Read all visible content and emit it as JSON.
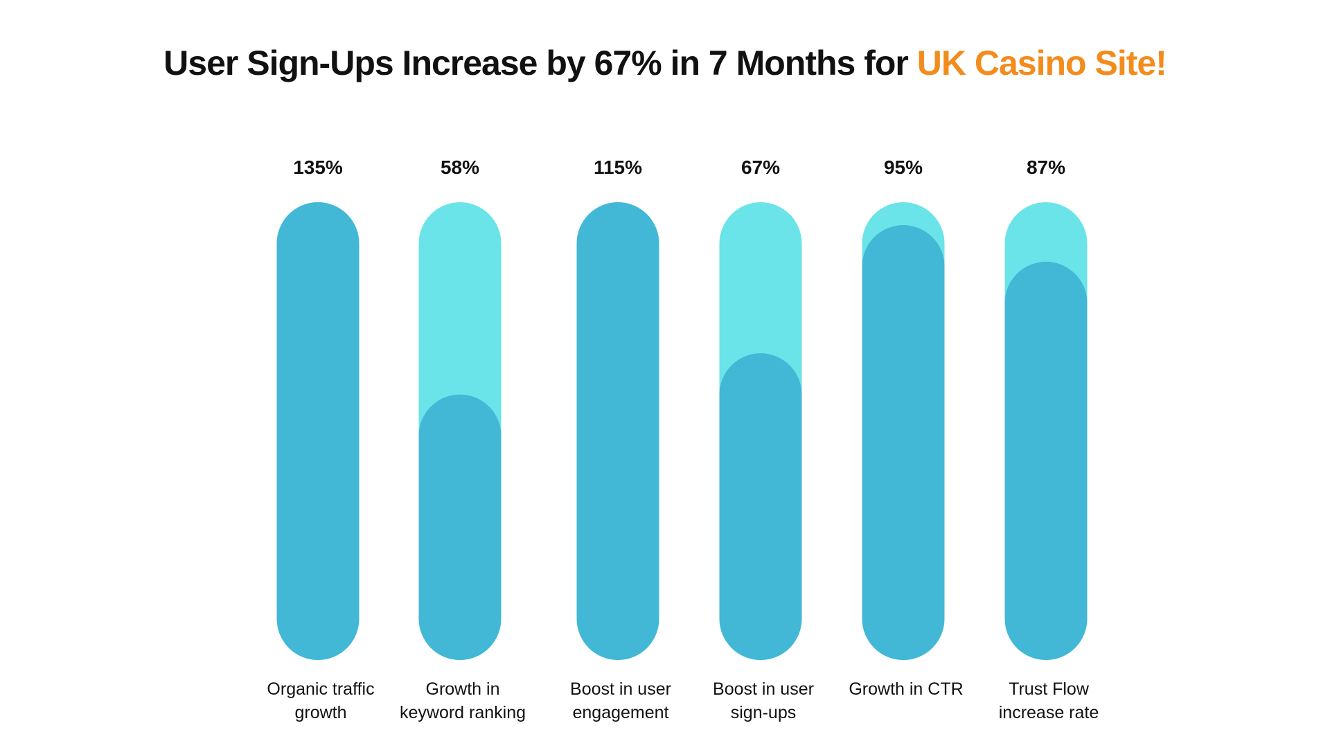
{
  "chart_data": {
    "type": "bar",
    "title": "User Sign-Ups Increase by 67% in 7 Months for ",
    "title_highlight": "UK Casino Site!",
    "categories": [
      "Organic traffic growth",
      "Growth in keyword ranking",
      "Boost in user engagement",
      "Boost in user sign-ups",
      "Growth in CTR",
      "Trust Flow increase rate"
    ],
    "values": [
      135,
      58,
      115,
      67,
      95,
      87
    ],
    "value_labels": [
      "135%",
      "58%",
      "115%",
      "67%",
      "95%",
      "87%"
    ],
    "ylim": [
      0,
      100
    ],
    "color": "#42b7d6",
    "track_color": "#6ae4e8",
    "highlight_color": "#f28c1c"
  }
}
